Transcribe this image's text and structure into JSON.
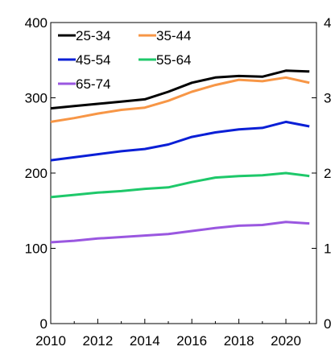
{
  "chart_data": {
    "type": "line",
    "title": "",
    "xlabel": "",
    "ylabel": "",
    "x": [
      2010,
      2011,
      2012,
      2013,
      2014,
      2015,
      2016,
      2017,
      2018,
      2019,
      2020,
      2021
    ],
    "xlim": [
      2010,
      2021.3
    ],
    "ylim": [
      0,
      400
    ],
    "ylim_right": [
      0,
      4
    ],
    "x_ticks": [
      2010,
      2012,
      2014,
      2016,
      2018,
      2020
    ],
    "x_tick_labels": [
      "2010",
      "2012",
      "2014",
      "2016",
      "2018",
      "2020"
    ],
    "y_ticks": [
      0,
      100,
      200,
      300,
      400
    ],
    "y_tick_labels": [
      "0",
      "100",
      "200",
      "300",
      "400"
    ],
    "y_right_ticks": [
      0,
      1,
      2,
      3,
      4
    ],
    "y_right_tick_labels": [
      "0",
      "1",
      "2",
      "3",
      "4"
    ],
    "grid": false,
    "legend": "top-left",
    "series": [
      {
        "name": "25-34",
        "color": "#000000",
        "values": [
          286,
          289,
          292,
          295,
          298,
          308,
          320,
          327,
          329,
          328,
          336,
          335
        ]
      },
      {
        "name": "35-44",
        "color": "#f79646",
        "values": [
          268,
          273,
          279,
          284,
          287,
          296,
          308,
          317,
          324,
          322,
          327,
          320
        ]
      },
      {
        "name": "45-54",
        "color": "#0a1fd6",
        "values": [
          217,
          221,
          225,
          229,
          232,
          238,
          248,
          254,
          258,
          260,
          268,
          262
        ]
      },
      {
        "name": "55-64",
        "color": "#1ec86a",
        "values": [
          168,
          171,
          174,
          176,
          179,
          181,
          188,
          194,
          196,
          197,
          200,
          196
        ]
      },
      {
        "name": "65-74",
        "color": "#9a57e0",
        "values": [
          108,
          110,
          113,
          115,
          117,
          119,
          123,
          127,
          130,
          131,
          135,
          133
        ]
      }
    ]
  }
}
